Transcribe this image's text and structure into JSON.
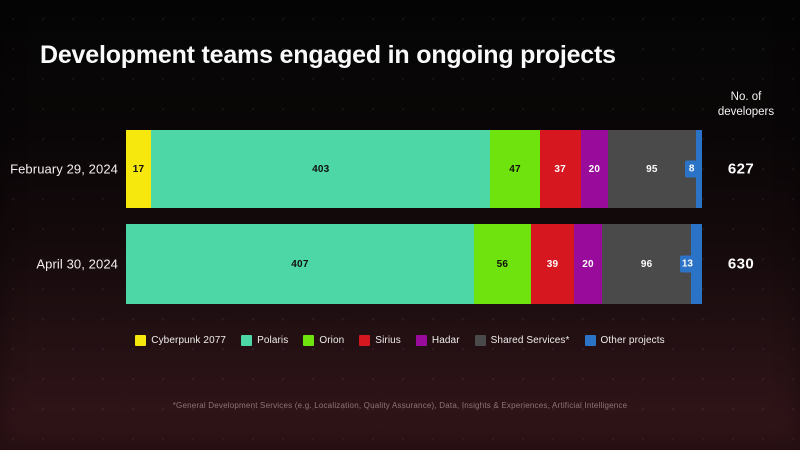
{
  "title": "Development teams engaged in ongoing projects",
  "value_header": {
    "line1": "No. of",
    "line2": "developers"
  },
  "footnote": "*General Development Services (e.g. Localization, Quality Assurance), Data, Insights & Experiences, Artificial Intelligence",
  "colors": {
    "background_top": "#050505",
    "background_bottom": "#341519",
    "title_text": "#fafafa",
    "footnote_text": "#8d7478"
  },
  "chart_data": {
    "type": "bar",
    "orientation": "horizontal",
    "stacked": true,
    "title": "Development teams engaged in ongoing projects",
    "value_axis_label": "No. of developers",
    "categories": [
      "February 29, 2024",
      "April 30, 2024"
    ],
    "series": [
      {
        "name": "Cyberpunk 2077",
        "color": "#f6e70c",
        "label_color": "dark",
        "values": [
          17,
          0
        ]
      },
      {
        "name": "Polaris",
        "color": "#4ed7a6",
        "label_color": "dark",
        "values": [
          403,
          407
        ]
      },
      {
        "name": "Orion",
        "color": "#6ee30d",
        "label_color": "dark",
        "values": [
          47,
          56
        ]
      },
      {
        "name": "Sirius",
        "color": "#d61720",
        "label_color": "light",
        "values": [
          37,
          39
        ]
      },
      {
        "name": "Hadar",
        "color": "#990c9b",
        "label_color": "light",
        "values": [
          20,
          20
        ]
      },
      {
        "name": "Shared Services*",
        "color": "#4a4a4a",
        "label_color": "light",
        "values": [
          95,
          96
        ]
      },
      {
        "name": "Other projects",
        "color": "#2a73c6",
        "label_color": "light",
        "values": [
          8,
          13
        ]
      }
    ],
    "totals": [
      "627",
      "630"
    ],
    "legend_position": "bottom",
    "grid": false,
    "footnote": "*General Development Services (e.g. Localization, Quality Assurance), Data, Insights & Experiences, Artificial Intelligence"
  }
}
